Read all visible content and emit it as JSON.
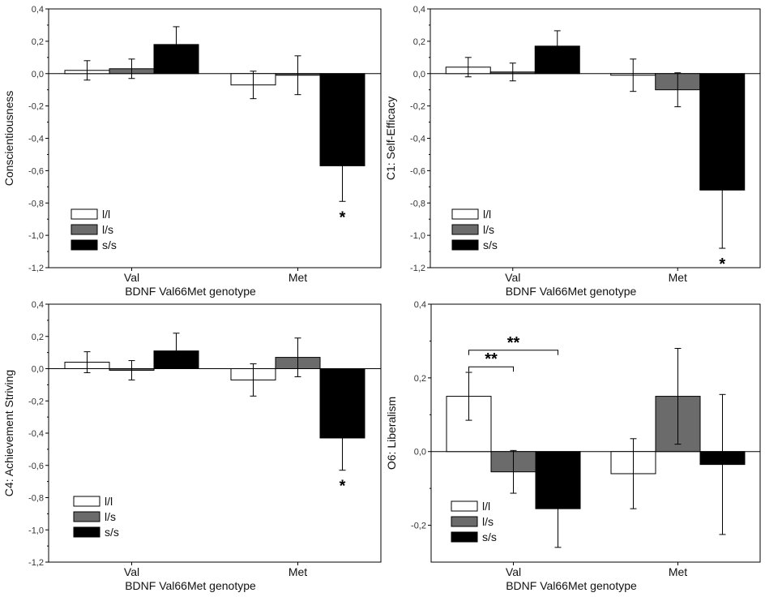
{
  "chart_data": [
    {
      "type": "bar",
      "ylabel": "Conscientiousness",
      "xlabel": "BDNF Val66Met genotype",
      "categories": [
        "Val",
        "Met"
      ],
      "series": [
        {
          "name": "l/l",
          "color": "#ffffff",
          "values": [
            0.02,
            -0.07
          ],
          "errors": [
            0.06,
            0.085
          ]
        },
        {
          "name": "l/s",
          "color": "#6b6b6b",
          "values": [
            0.03,
            -0.01
          ],
          "errors": [
            0.06,
            0.12
          ]
        },
        {
          "name": "s/s",
          "color": "#000000",
          "values": [
            0.18,
            -0.57
          ],
          "errors": [
            0.11,
            0.22
          ]
        }
      ],
      "ylim": [
        -1.2,
        0.4
      ],
      "yticks": [
        0.4,
        0.2,
        0.0,
        -0.2,
        -0.4,
        -0.6,
        -0.8,
        -1.0,
        -1.2
      ],
      "ytick_labels": [
        "0,4",
        "0,2",
        "0,0",
        "-0,2",
        "-0,4",
        "-0,6",
        "-0,8",
        "-1,0",
        "-1,2"
      ],
      "legend": "bottom-left",
      "annotations": [
        {
          "text": "*",
          "category": 1,
          "series": 2
        }
      ]
    },
    {
      "type": "bar",
      "ylabel": "C1: Self-Efficacy",
      "xlabel": "BDNF Val66Met genotype",
      "categories": [
        "Val",
        "Met"
      ],
      "series": [
        {
          "name": "l/l",
          "color": "#ffffff",
          "values": [
            0.04,
            -0.01
          ],
          "errors": [
            0.06,
            0.1
          ]
        },
        {
          "name": "l/s",
          "color": "#6b6b6b",
          "values": [
            0.01,
            -0.1
          ],
          "errors": [
            0.055,
            0.105
          ]
        },
        {
          "name": "s/s",
          "color": "#000000",
          "values": [
            0.17,
            -0.72
          ],
          "errors": [
            0.095,
            0.36
          ]
        }
      ],
      "ylim": [
        -1.2,
        0.4
      ],
      "yticks": [
        0.4,
        0.2,
        0.0,
        -0.2,
        -0.4,
        -0.6,
        -0.8,
        -1.0,
        -1.2
      ],
      "ytick_labels": [
        "0,4",
        "0,2",
        "0,0",
        "-0,2",
        "-0,4",
        "-0,6",
        "-0,8",
        "-1,0",
        "-1,2"
      ],
      "legend": "bottom-left",
      "annotations": [
        {
          "text": "*",
          "category": 1,
          "series": 2
        }
      ]
    },
    {
      "type": "bar",
      "ylabel": "C4: Achievement Striving",
      "xlabel": "BDNF Val66Met genotype",
      "categories": [
        "Val",
        "Met"
      ],
      "series": [
        {
          "name": "l/l",
          "color": "#ffffff",
          "values": [
            0.04,
            -0.07
          ],
          "errors": [
            0.065,
            0.1
          ]
        },
        {
          "name": "l/s",
          "color": "#6b6b6b",
          "values": [
            -0.01,
            0.07
          ],
          "errors": [
            0.06,
            0.12
          ]
        },
        {
          "name": "s/s",
          "color": "#000000",
          "values": [
            0.11,
            -0.43
          ],
          "errors": [
            0.11,
            0.2
          ]
        }
      ],
      "ylim": [
        -1.2,
        0.4
      ],
      "yticks": [
        0.4,
        0.2,
        0.0,
        -0.2,
        -0.4,
        -0.6,
        -0.8,
        -1.0,
        -1.2
      ],
      "ytick_labels": [
        "0,4",
        "0,2",
        "0,0",
        "-0,2",
        "-0,4",
        "-0,6",
        "-0,8",
        "-1,0",
        "-1,2"
      ],
      "legend": "bottom-left",
      "annotations": [
        {
          "text": "*",
          "category": 1,
          "series": 2
        }
      ]
    },
    {
      "type": "bar",
      "ylabel": "O6: Liberalism",
      "xlabel": "BDNF Val66Met genotype",
      "categories": [
        "Val",
        "Met"
      ],
      "series": [
        {
          "name": "l/l",
          "color": "#ffffff",
          "values": [
            0.15,
            -0.06
          ],
          "errors": [
            0.065,
            0.095
          ]
        },
        {
          "name": "l/s",
          "color": "#6b6b6b",
          "values": [
            -0.055,
            0.15
          ],
          "errors": [
            0.058,
            0.13
          ]
        },
        {
          "name": "s/s",
          "color": "#000000",
          "values": [
            -0.155,
            -0.035
          ],
          "errors": [
            0.105,
            0.19
          ]
        }
      ],
      "ylim": [
        -0.3,
        0.4
      ],
      "yticks": [
        0.4,
        0.2,
        0.0,
        -0.2
      ],
      "ytick_labels": [
        "0,4",
        "0,2",
        "0,0",
        "-0,2"
      ],
      "legend": "bottom-left",
      "brackets": [
        {
          "text": "**",
          "category": 0,
          "from": 0,
          "to": 1,
          "level": 0.23
        },
        {
          "text": "**",
          "category": 0,
          "from": 0,
          "to": 2,
          "level": 0.275
        }
      ]
    }
  ]
}
